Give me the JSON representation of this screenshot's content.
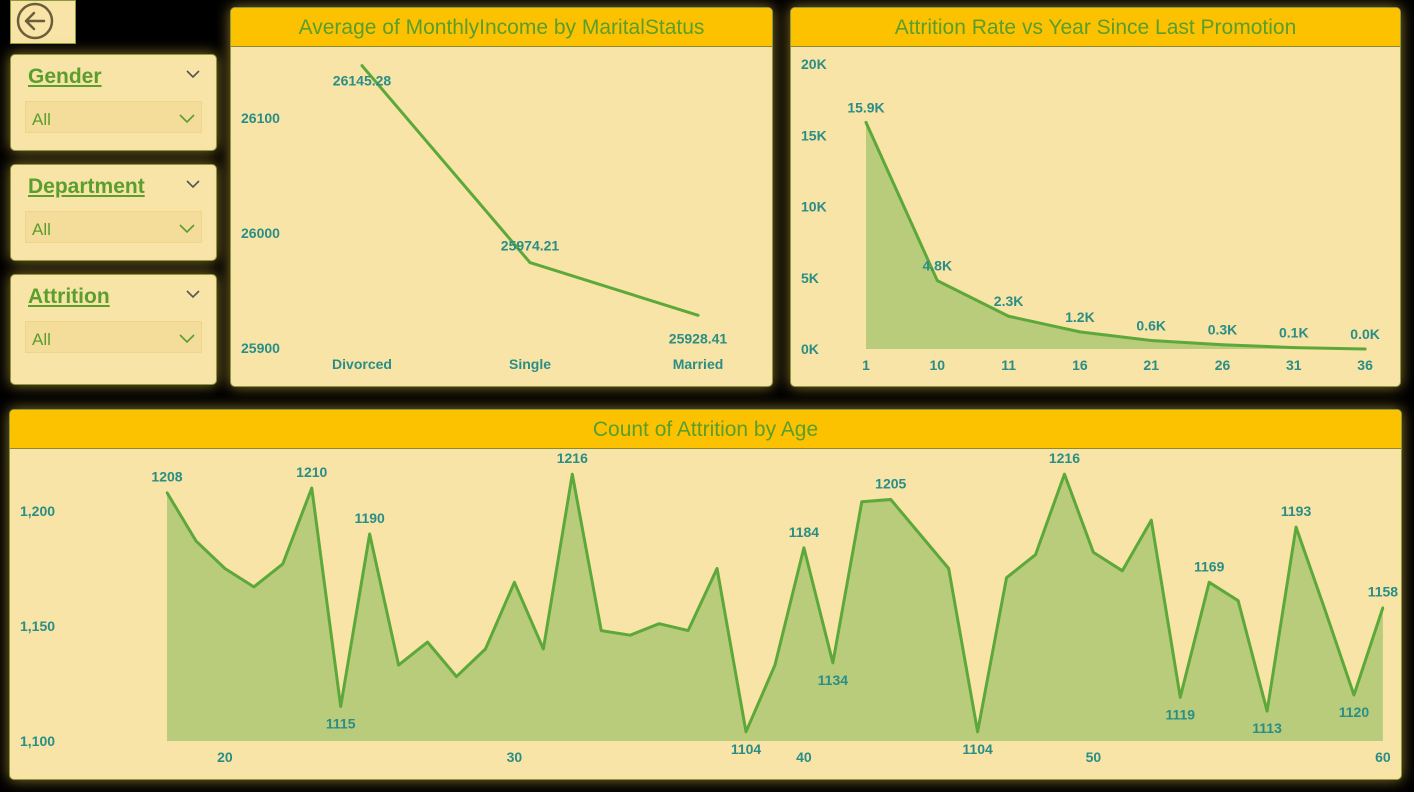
{
  "slicers": [
    {
      "title": "Gender",
      "value": "All"
    },
    {
      "title": "Department",
      "value": "All"
    },
    {
      "title": "Attrition",
      "value": "All"
    }
  ],
  "colors": {
    "header": "#fcc200",
    "panel": "#f7e4a6",
    "line": "#5ca83a",
    "area": "#b9cc7c",
    "text": "#2a8e86"
  },
  "icons": {
    "back": "back-arrow-icon",
    "chevron": "chevron-down-icon"
  },
  "charts": {
    "income": {
      "title": "Average of MonthlyIncome by MaritalStatus"
    },
    "promotion": {
      "title": "Attrition Rate vs Year Since Last Promotion"
    },
    "age": {
      "title": "Count of Attrition by Age"
    }
  },
  "chart_data": [
    {
      "type": "line",
      "title": "Average of MonthlyIncome by MaritalStatus",
      "categories": [
        "Divorced",
        "Single",
        "Married"
      ],
      "values": [
        26145.28,
        25974.21,
        25928.41
      ],
      "data_labels": [
        "26145.28",
        "25974.21",
        "25928.41"
      ],
      "yticks": [
        "25900",
        "26000",
        "26100"
      ],
      "ylim": [
        25900,
        26150
      ],
      "grid": false
    },
    {
      "type": "area",
      "title": "Attrition Rate vs Year Since Last Promotion",
      "categories": [
        "1",
        "10",
        "11",
        "16",
        "21",
        "26",
        "31",
        "36"
      ],
      "values": [
        15900,
        4800,
        2300,
        1200,
        600,
        300,
        100,
        0
      ],
      "data_labels": [
        "15.9K",
        "4.8K",
        "2.3K",
        "1.2K",
        "0.6K",
        "0.3K",
        "0.1K",
        "0.0K"
      ],
      "yticks": [
        "0K",
        "5K",
        "10K",
        "15K",
        "20K"
      ],
      "ylim": [
        0,
        20000
      ],
      "grid": false
    },
    {
      "type": "area",
      "title": "Count of Attrition by Age",
      "x": [
        18,
        19,
        20,
        21,
        22,
        23,
        24,
        25,
        26,
        27,
        28,
        29,
        30,
        31,
        32,
        33,
        34,
        35,
        36,
        37,
        38,
        39,
        40,
        41,
        42,
        43,
        44,
        45,
        46,
        47,
        48,
        49,
        50,
        51,
        52,
        53,
        54,
        55,
        56,
        57,
        58,
        59,
        60
      ],
      "values": [
        1208,
        1187,
        1175,
        1167,
        1177,
        1210,
        1115,
        1190,
        1133,
        1143,
        1128,
        1140,
        1169,
        1140,
        1216,
        1148,
        1146,
        1151,
        1148,
        1175,
        1104,
        1133,
        1184,
        1134,
        1204,
        1205,
        1190,
        1175,
        1104,
        1171,
        1181,
        1216,
        1182,
        1174,
        1196,
        1119,
        1169,
        1161,
        1113,
        1193,
        1157,
        1120,
        1158
      ],
      "data_labels": [
        {
          "x": 18,
          "text": "1208"
        },
        {
          "x": 23,
          "text": "1210"
        },
        {
          "x": 24,
          "text": "1115"
        },
        {
          "x": 25,
          "text": "1190"
        },
        {
          "x": 32,
          "text": "1216"
        },
        {
          "x": 38,
          "text": "1104"
        },
        {
          "x": 40,
          "text": "1184"
        },
        {
          "x": 41,
          "text": "1134"
        },
        {
          "x": 43,
          "text": "1205"
        },
        {
          "x": 46,
          "text": "1104"
        },
        {
          "x": 49,
          "text": "1216"
        },
        {
          "x": 53,
          "text": "1119"
        },
        {
          "x": 54,
          "text": "1169"
        },
        {
          "x": 56,
          "text": "1113"
        },
        {
          "x": 57,
          "text": "1193"
        },
        {
          "x": 59,
          "text": "1120"
        },
        {
          "x": 60,
          "text": "1158"
        }
      ],
      "xticks": [
        "20",
        "30",
        "40",
        "50",
        "60"
      ],
      "yticks": [
        "1,100",
        "1,150",
        "1,200"
      ],
      "ylim": [
        1100,
        1216
      ],
      "grid": false
    }
  ]
}
